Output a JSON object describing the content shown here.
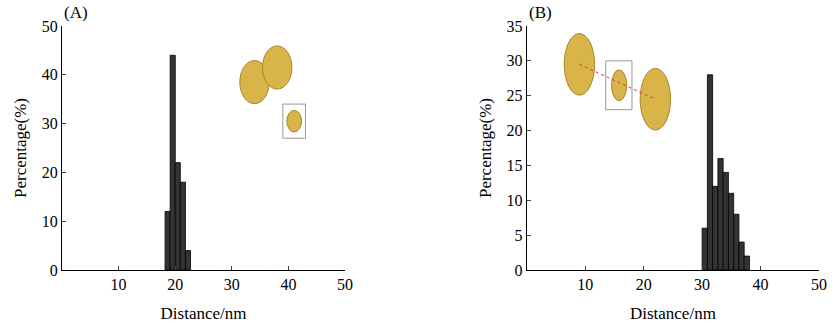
{
  "chart_data": [
    {
      "type": "histogram",
      "title": "(A)",
      "x_label": "Distance/nm",
      "y_label": "Percentage(%)",
      "bins": [
        18.2,
        19.1,
        20.0,
        20.9,
        21.8,
        22.7
      ],
      "counts": [
        12,
        44,
        22,
        18,
        4
      ],
      "color": "#333333",
      "xlim": [
        0,
        50
      ],
      "xticks": [
        10,
        20,
        30,
        40,
        50
      ],
      "ylim": [
        0,
        50
      ],
      "yticks": [
        0,
        10,
        20,
        30,
        40,
        50
      ],
      "grid": false
    },
    {
      "type": "histogram",
      "title": "(B)",
      "x_label": "Distance/nm",
      "y_label": "Percentage(%)",
      "bins": [
        30.0,
        30.9,
        31.8,
        32.7,
        33.6,
        34.5,
        35.4,
        36.3,
        37.2,
        38.1
      ],
      "counts": [
        6,
        28,
        12,
        16,
        14,
        11,
        8,
        4,
        2
      ],
      "color": "#333333",
      "xlim": [
        0,
        50
      ],
      "xticks": [
        10,
        20,
        30,
        40,
        50
      ],
      "ylim": [
        0,
        35
      ],
      "yticks": [
        0,
        5,
        10,
        15,
        20,
        25,
        30,
        35
      ],
      "grid": false
    }
  ]
}
